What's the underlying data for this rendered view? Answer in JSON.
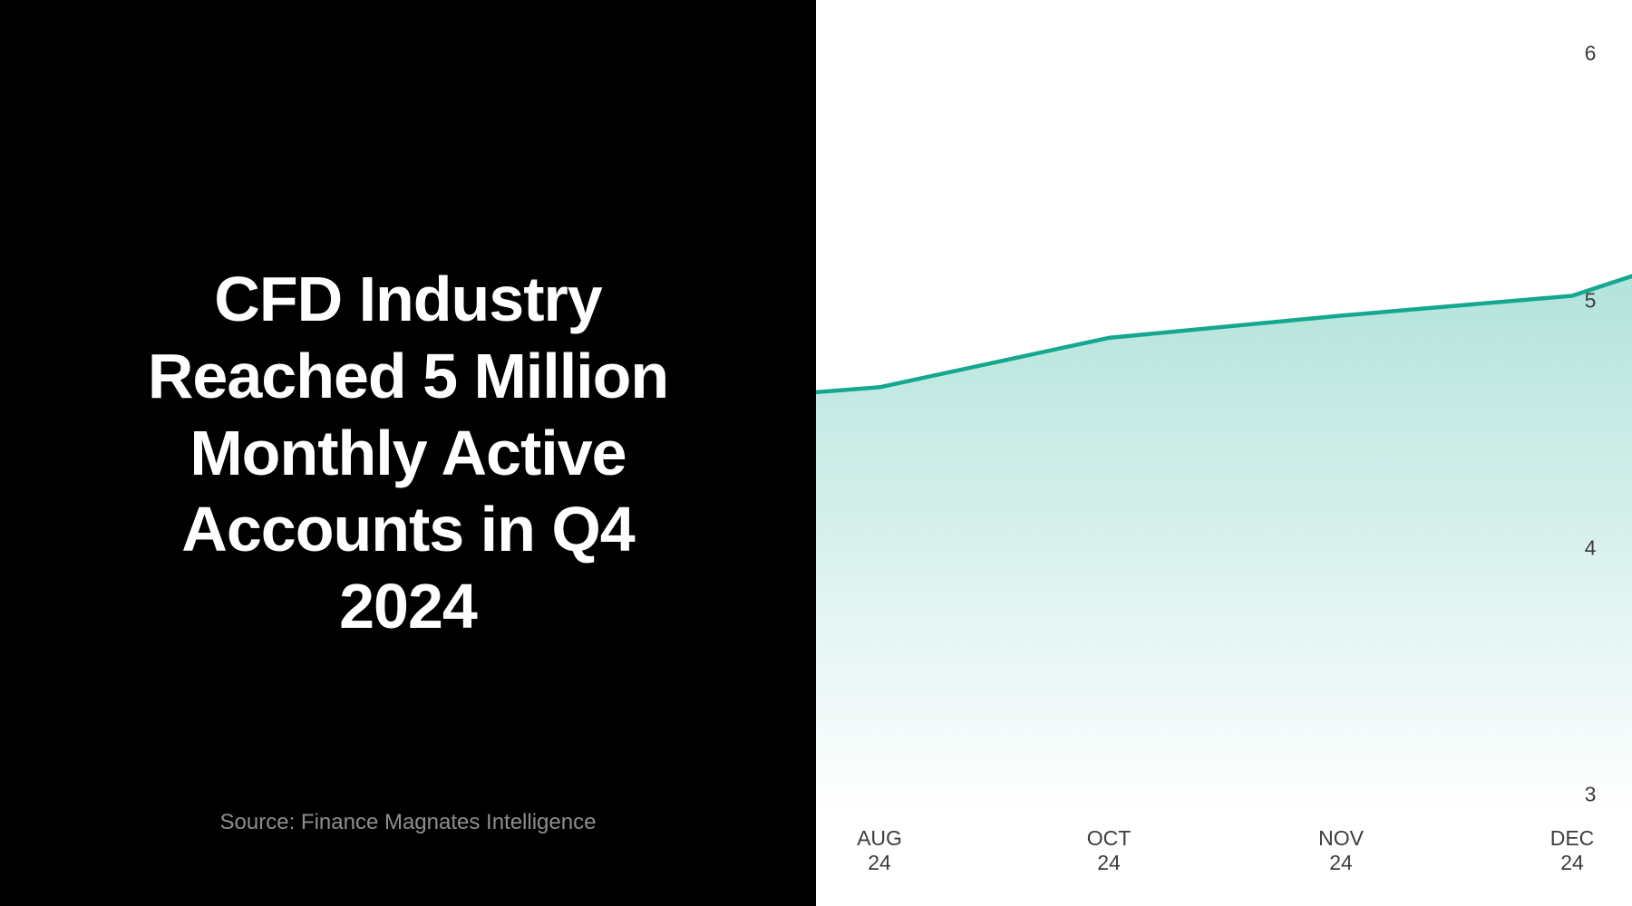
{
  "left_panel": {
    "title": "CFD Industry\nReached 5 Million\nMonthly Active\nAccounts in Q4\n2024",
    "source": "Source: Finance Magnates Intelligence"
  },
  "chart_data": {
    "type": "area",
    "title": "CFD Industry Reached 5 Million Monthly Active Accounts in Q4 2024",
    "categories": [
      "AUG 24",
      "OCT 24",
      "NOV 24",
      "DEC 24"
    ],
    "values": [
      4.65,
      4.85,
      4.94,
      5.02
    ],
    "unit": "million monthly active accounts",
    "edge_values": {
      "left": 4.63,
      "right": 5.1
    },
    "y_ticks": [
      6,
      5,
      4,
      3
    ],
    "ylim": [
      2.5,
      6.2
    ],
    "y_axis_side": "right",
    "x_axis_position": "bottom",
    "grid": false,
    "legend": false,
    "colors": {
      "line": "#13A88F",
      "fill_top": "rgba(19,168,143,0.32)",
      "fill_bottom": "rgba(19,168,143,0)",
      "panel_bg": "#000000",
      "chart_bg": "#ffffff"
    }
  }
}
